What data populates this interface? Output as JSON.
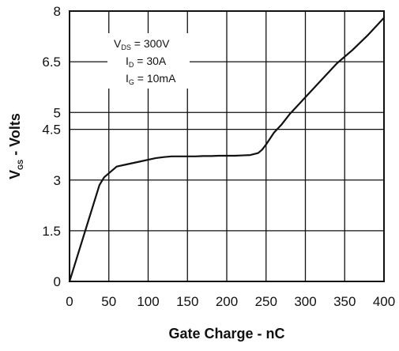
{
  "chart_data": {
    "type": "line",
    "title": "",
    "xlabel": "Gate Charge - nC",
    "ylabel": {
      "main": "V",
      "sub": "GS",
      "suffix": " - Volts"
    },
    "xlim": [
      0,
      400
    ],
    "ylim": [
      0,
      8
    ],
    "xticks": [
      0,
      50,
      100,
      150,
      200,
      250,
      300,
      350,
      400
    ],
    "xtick_labels": [
      "0",
      "50",
      "100",
      "150",
      "200",
      "250",
      "300",
      "350",
      "400"
    ],
    "yticks": [
      0,
      1.5,
      3,
      4.5,
      5,
      6.5,
      8
    ],
    "ytick_labels": [
      "0",
      "1.5",
      "3",
      "4.5",
      "5",
      "6.5",
      "8"
    ],
    "grid": true,
    "annotations": [
      {
        "main": "V",
        "sub": "DS",
        "value": " = 300V"
      },
      {
        "main": "I",
        "sub": "D",
        "value": " = 30A"
      },
      {
        "main": "I",
        "sub": "G",
        "value": " = 10mA"
      }
    ],
    "series": [
      {
        "color": "#111111",
        "x": [
          0,
          10,
          20,
          30,
          38,
          44,
          50,
          60,
          70,
          80,
          90,
          100,
          110,
          120,
          130,
          140,
          150,
          160,
          170,
          180,
          190,
          200,
          210,
          220,
          230,
          240,
          245,
          250,
          260,
          270,
          280,
          290,
          300,
          320,
          340,
          360,
          380,
          400
        ],
        "y": [
          0,
          0.75,
          1.5,
          2.25,
          2.85,
          3.08,
          3.2,
          3.4,
          3.45,
          3.5,
          3.55,
          3.6,
          3.65,
          3.68,
          3.7,
          3.7,
          3.7,
          3.7,
          3.71,
          3.71,
          3.72,
          3.72,
          3.72,
          3.73,
          3.74,
          3.8,
          3.9,
          4.05,
          4.4,
          4.65,
          4.95,
          5.2,
          5.45,
          5.95,
          6.45,
          6.85,
          7.3,
          7.8
        ]
      }
    ]
  }
}
